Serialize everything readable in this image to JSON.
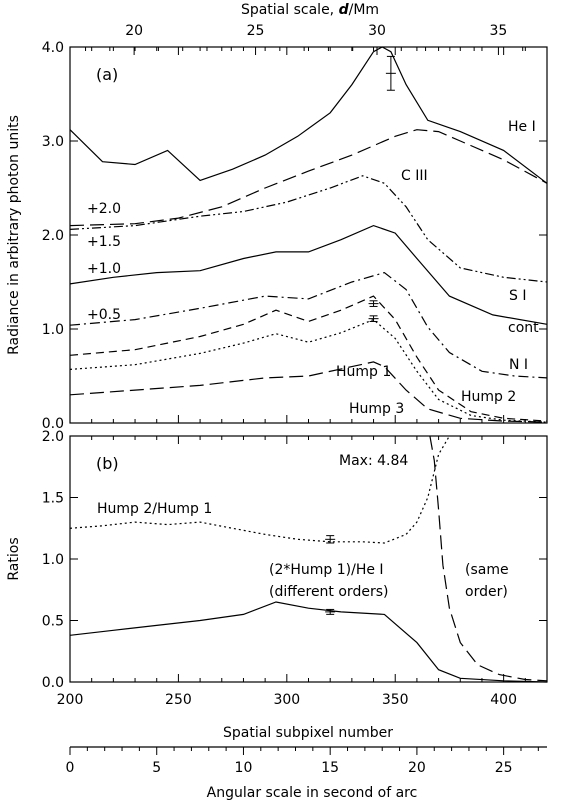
{
  "chart_data": [
    {
      "panel_label": "(a)",
      "type": "line",
      "ylabel": "Radiance in arbitrary photon units",
      "ylim": [
        0.0,
        4.0
      ],
      "yticks": [
        "0.0",
        "1.0",
        "2.0",
        "3.0",
        "4.0"
      ],
      "top_axis": {
        "label": "Spatial scale, d/Mm",
        "label_prefix": "Spatial scale, ",
        "label_var": "d",
        "label_suffix": "/Mm",
        "range": [
          17.36,
          37.0
        ],
        "ticks": [
          "20",
          "25",
          "30",
          "35"
        ]
      },
      "xlim": [
        200,
        420
      ],
      "offset_labels": [
        "+2.0",
        "+1.5",
        "+1.0",
        "+0.5"
      ],
      "annotations": [
        "Hump 1",
        "Hump 2",
        "Hump 3"
      ],
      "series": [
        {
          "name": "He I",
          "dash": "solid",
          "x": [
            200,
            215,
            230,
            245,
            260,
            275,
            290,
            305,
            320,
            330,
            340,
            344,
            348,
            355,
            365,
            380,
            400,
            420
          ],
          "y": [
            3.12,
            2.78,
            2.75,
            2.9,
            2.58,
            2.7,
            2.85,
            3.05,
            3.3,
            3.6,
            3.95,
            4.05,
            3.95,
            3.6,
            3.22,
            3.1,
            2.9,
            2.55
          ]
        },
        {
          "name": "C III",
          "dash": "longdash",
          "x": [
            200,
            230,
            250,
            270,
            290,
            310,
            330,
            350,
            360,
            370,
            380,
            400,
            420
          ],
          "y": [
            2.1,
            2.12,
            2.18,
            2.3,
            2.5,
            2.68,
            2.85,
            3.05,
            3.12,
            3.1,
            3.0,
            2.8,
            2.55
          ]
        },
        {
          "name": "S I",
          "dash": "dashdotdot",
          "x": [
            200,
            230,
            260,
            280,
            300,
            320,
            335,
            345,
            355,
            365,
            380,
            400,
            420
          ],
          "y": [
            2.06,
            2.1,
            2.2,
            2.25,
            2.35,
            2.5,
            2.63,
            2.55,
            2.3,
            1.95,
            1.65,
            1.55,
            1.5
          ]
        },
        {
          "name": "cont",
          "dash": "solid",
          "x": [
            200,
            220,
            240,
            260,
            280,
            295,
            310,
            325,
            340,
            350,
            360,
            375,
            395,
            420
          ],
          "y": [
            1.48,
            1.55,
            1.6,
            1.62,
            1.75,
            1.82,
            1.82,
            1.95,
            2.1,
            2.02,
            1.75,
            1.35,
            1.15,
            1.05
          ]
        },
        {
          "name": "N I",
          "dash": "dashdot",
          "x": [
            200,
            230,
            260,
            290,
            310,
            330,
            345,
            355,
            365,
            375,
            390,
            405,
            420
          ],
          "y": [
            1.04,
            1.1,
            1.22,
            1.35,
            1.32,
            1.5,
            1.6,
            1.42,
            1.02,
            0.75,
            0.55,
            0.5,
            0.48
          ]
        },
        {
          "name": "Hump 2",
          "dash": "dash",
          "x": [
            200,
            230,
            260,
            280,
            295,
            310,
            325,
            340,
            350,
            360,
            370,
            385,
            400,
            420
          ],
          "y": [
            0.72,
            0.78,
            0.92,
            1.05,
            1.2,
            1.08,
            1.2,
            1.35,
            1.1,
            0.7,
            0.35,
            0.12,
            0.05,
            0.02
          ]
        },
        {
          "name": "Hump 1",
          "dash": "dotted",
          "x": [
            200,
            230,
            260,
            280,
            295,
            310,
            325,
            340,
            350,
            360,
            370,
            385,
            400,
            420
          ],
          "y": [
            0.57,
            0.62,
            0.74,
            0.85,
            0.95,
            0.86,
            0.96,
            1.1,
            0.9,
            0.55,
            0.25,
            0.08,
            0.03,
            0.01
          ]
        },
        {
          "name": "Hump 3",
          "dash": "longdash",
          "x": [
            200,
            230,
            260,
            290,
            310,
            330,
            340,
            345,
            355,
            365,
            380,
            400,
            420
          ],
          "y": [
            0.3,
            0.35,
            0.4,
            0.48,
            0.5,
            0.6,
            0.65,
            0.6,
            0.35,
            0.15,
            0.05,
            0.02,
            0.01
          ]
        }
      ],
      "error_bars": [
        {
          "x": 348,
          "y": 3.72,
          "err": 0.18
        },
        {
          "x": 340,
          "y": 1.27,
          "err": 0.03
        },
        {
          "x": 340,
          "y": 1.11,
          "err": 0.03
        }
      ]
    },
    {
      "panel_label": "(b)",
      "type": "line",
      "ylabel": "Ratios",
      "ylim": [
        0.0,
        2.0
      ],
      "yticks": [
        "0.0",
        "0.5",
        "1.0",
        "1.5",
        "2.0"
      ],
      "xlabel": "Spatial subpixel number",
      "xlim": [
        200,
        420
      ],
      "xticks": [
        "200",
        "250",
        "300",
        "350",
        "400"
      ],
      "bottom_axis": {
        "label": "Angular scale in second of arc",
        "range": [
          0,
          27.5
        ],
        "ticks": [
          "0",
          "5",
          "10",
          "15",
          "20",
          "25"
        ]
      },
      "annotations": [
        "Max: 4.84",
        "(2*Hump 1)/He I",
        "(different orders)",
        "(same",
        "order)"
      ],
      "series": [
        {
          "name": "Hump 2/Hump 1",
          "dash": "dotted",
          "x": [
            200,
            215,
            230,
            245,
            260,
            275,
            290,
            305,
            320,
            335,
            345,
            355,
            360,
            365,
            370,
            375
          ],
          "y": [
            1.25,
            1.27,
            1.3,
            1.28,
            1.3,
            1.25,
            1.2,
            1.16,
            1.14,
            1.14,
            1.13,
            1.2,
            1.3,
            1.5,
            1.85,
            2.05
          ]
        },
        {
          "name": "(2*Hump 1)/He I",
          "dash": "solid",
          "x": [
            200,
            220,
            240,
            260,
            280,
            295,
            310,
            325,
            345,
            360,
            370,
            380,
            400,
            420
          ],
          "y": [
            0.38,
            0.42,
            0.46,
            0.5,
            0.55,
            0.65,
            0.6,
            0.57,
            0.55,
            0.32,
            0.1,
            0.03,
            0.01,
            0.0
          ]
        },
        {
          "name": "(same order)",
          "dash": "longdash",
          "x": [
            366,
            368,
            370,
            372,
            375,
            380,
            388,
            398,
            410,
            420
          ],
          "y": [
            2.05,
            1.8,
            1.4,
            0.95,
            0.6,
            0.32,
            0.14,
            0.06,
            0.02,
            0.01
          ]
        }
      ],
      "error_bars": [
        {
          "x": 320,
          "y": 1.16,
          "err": 0.03
        },
        {
          "x": 320,
          "y": 0.57,
          "err": 0.02
        }
      ]
    }
  ]
}
